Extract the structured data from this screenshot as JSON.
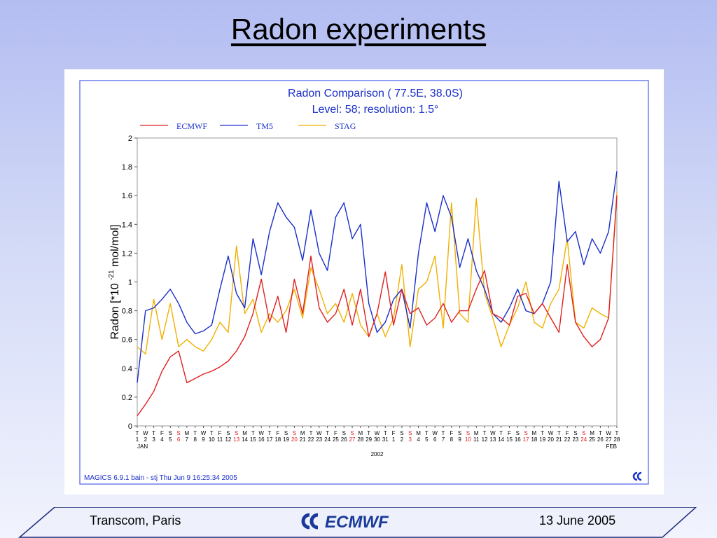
{
  "slide": {
    "title": "Radon experiments",
    "footer_left": "Transcom, Paris",
    "footer_right": "13 June 2005",
    "footer_logo_text": "ECMWF"
  },
  "colors": {
    "ecmwf": "#e02020",
    "tm5": "#1a2fc9",
    "stag": "#f0b000",
    "frame": "#4a5fe8",
    "sunday": "#e02020",
    "chart_text": "#1a2fc9",
    "logo": "#1a3a9a"
  },
  "chart_data": {
    "type": "line",
    "title": "Radon Comparison ( 77.5E, 38.0S)",
    "subtitle": "Level: 58; resolution: 1.5°",
    "ylabel_main": "Radon [*10",
    "ylabel_exp": "-21",
    "ylabel_unit": "mol/mol]",
    "xlabel": "2002",
    "month_start": "JAN",
    "month_end": "FEB",
    "footer_text": "MAGICS 6.9.1 bain - stj Thu Jun  9 16:25:34 2005",
    "ylim": [
      0,
      2
    ],
    "yticks": [
      "0",
      "0.2",
      "0.4",
      "0.6",
      "0.8",
      "1",
      "1.2",
      "1.4",
      "1.6",
      "1.8",
      "2"
    ],
    "xlim": [
      1,
      28
    ],
    "grid": false,
    "legend_position": "top",
    "day_letters": [
      "T",
      "W",
      "T",
      "F",
      "S",
      "S",
      "M",
      "T",
      "W",
      "T",
      "F",
      "S",
      "S",
      "M",
      "T",
      "W",
      "T",
      "F",
      "S",
      "S",
      "M",
      "T",
      "W",
      "T",
      "F",
      "S",
      "S",
      "M",
      "T",
      "W",
      "T",
      "F",
      "S",
      "S",
      "M",
      "T",
      "W",
      "T",
      "F",
      "S",
      "S",
      "M",
      "T",
      "W",
      "T",
      "F",
      "S",
      "S",
      "M",
      "T",
      "W",
      "T",
      "F",
      "S",
      "S",
      "M",
      "T",
      "W",
      "T",
      "T"
    ],
    "day_numbers": [
      "1",
      "2",
      "3",
      "4",
      "5",
      "6",
      "7",
      "8",
      "9",
      "10",
      "11",
      "12",
      "13",
      "14",
      "15",
      "16",
      "17",
      "18",
      "19",
      "20",
      "21",
      "22",
      "23",
      "24",
      "25",
      "26",
      "27",
      "28",
      "29",
      "30",
      "31",
      "1",
      "2",
      "3",
      "4",
      "5",
      "6",
      "7",
      "8",
      "9",
      "10",
      "11",
      "12",
      "13",
      "14",
      "15",
      "16",
      "17",
      "18",
      "19",
      "20",
      "21",
      "22",
      "23",
      "24",
      "25",
      "26",
      "27",
      "28"
    ],
    "sunday_indices": [
      5,
      12,
      19,
      26,
      33,
      40,
      47,
      54
    ],
    "series": [
      {
        "name": "ECMWF",
        "color_key": "ecmwf",
        "values": [
          0.07,
          0.15,
          0.24,
          0.38,
          0.48,
          0.52,
          0.3,
          0.33,
          0.36,
          0.38,
          0.41,
          0.45,
          0.52,
          0.62,
          0.78,
          1.02,
          0.72,
          0.9,
          0.65,
          1.02,
          0.78,
          1.18,
          0.82,
          0.72,
          0.78,
          0.95,
          0.7,
          0.95,
          0.62,
          0.78,
          1.07,
          0.7,
          0.95,
          0.78,
          0.82,
          0.7,
          0.75,
          0.85,
          0.72,
          0.8,
          0.8,
          0.95,
          1.08,
          0.78,
          0.75,
          0.7,
          0.9,
          0.92,
          0.78,
          0.85,
          0.75,
          0.65,
          1.12,
          0.72,
          0.62,
          0.55,
          0.6,
          0.75,
          1.6
        ]
      },
      {
        "name": "TM5",
        "color_key": "tm5",
        "values": [
          0.3,
          0.8,
          0.82,
          0.88,
          0.95,
          0.85,
          0.72,
          0.64,
          0.66,
          0.7,
          0.95,
          1.18,
          0.92,
          0.82,
          1.3,
          1.05,
          1.35,
          1.55,
          1.45,
          1.38,
          1.15,
          1.5,
          1.2,
          1.08,
          1.45,
          1.55,
          1.3,
          1.4,
          0.85,
          0.65,
          0.72,
          0.88,
          0.95,
          0.68,
          1.2,
          1.55,
          1.35,
          1.6,
          1.45,
          1.1,
          1.3,
          1.08,
          0.95,
          0.78,
          0.72,
          0.82,
          0.95,
          0.8,
          0.78,
          0.85,
          1.0,
          1.7,
          1.28,
          1.35,
          1.12,
          1.3,
          1.2,
          1.35,
          1.77
        ]
      },
      {
        "name": "STAG",
        "color_key": "stag",
        "values": [
          0.55,
          0.5,
          0.88,
          0.6,
          0.85,
          0.55,
          0.6,
          0.55,
          0.52,
          0.6,
          0.72,
          0.65,
          1.25,
          0.78,
          0.88,
          0.65,
          0.78,
          0.72,
          0.8,
          0.95,
          0.75,
          1.1,
          0.95,
          0.78,
          0.85,
          0.72,
          0.92,
          0.7,
          0.62,
          0.78,
          0.62,
          0.75,
          1.12,
          0.55,
          0.95,
          1.0,
          1.18,
          0.68,
          1.55,
          0.78,
          0.72,
          1.58,
          0.92,
          0.75,
          0.55,
          0.7,
          0.82,
          1.0,
          0.72,
          0.68,
          0.85,
          0.95,
          1.3,
          0.72,
          0.68,
          0.82,
          0.78,
          0.75,
          1.62
        ]
      }
    ]
  }
}
